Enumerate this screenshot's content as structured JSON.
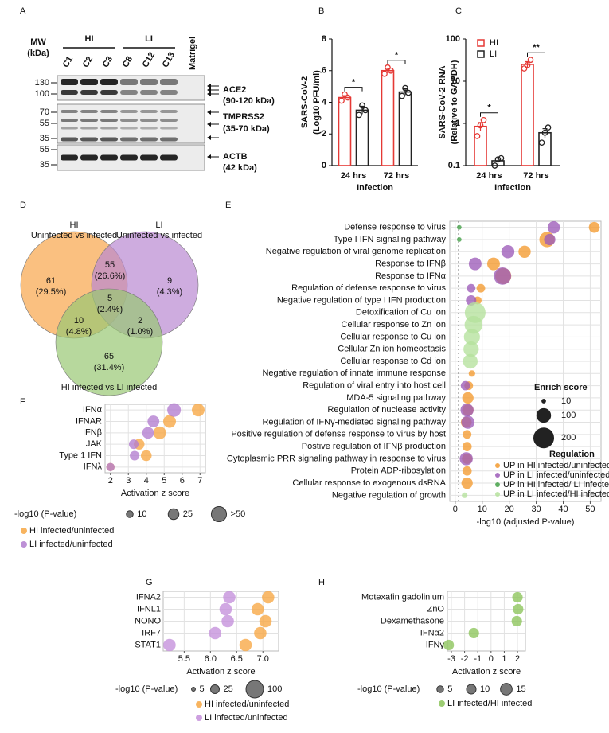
{
  "blot": {
    "panel": "A",
    "mw_title": [
      "MW",
      "(kDa)"
    ],
    "groups": [
      {
        "name": "HI",
        "lanes": [
          "C1",
          "C2",
          "C3"
        ]
      },
      {
        "name": "LI",
        "lanes": [
          "C8",
          "C12",
          "C13"
        ]
      }
    ],
    "control_lane": "Matrigel",
    "strips": [
      {
        "mw": [
          130,
          100
        ],
        "labels": [
          "ACE2",
          "(90-120 kDa)"
        ]
      },
      {
        "mw": [
          70,
          55,
          35
        ],
        "labels": [
          "TMPRSS2",
          "(35-70 kDa)"
        ]
      },
      {
        "mw": [
          55,
          35
        ],
        "labels": [
          "ACTB",
          "(42 kDa)"
        ]
      }
    ]
  },
  "venn": {
    "panel": "D",
    "sets": [
      {
        "name": "HI",
        "subtitle": "Uninfected vs infected",
        "color": "#f8a54a"
      },
      {
        "name": "LI",
        "subtitle": "Uninfected vs infected",
        "color": "#b989d2"
      },
      {
        "name": "HI infected vs LI infected",
        "color": "#99c873"
      }
    ],
    "regions": [
      {
        "count": 61,
        "percent": "(29.5%)"
      },
      {
        "count": 55,
        "percent": "(26.6%)"
      },
      {
        "count": 9,
        "percent": "(4.3%)"
      },
      {
        "count": 5,
        "percent": "(2.4%)"
      },
      {
        "count": 10,
        "percent": "(4.8%)"
      },
      {
        "count": 2,
        "percent": "(1.0%)"
      },
      {
        "count": 65,
        "percent": "(31.4%)"
      }
    ]
  },
  "chart_data": [
    {
      "panel": "B",
      "type": "bar",
      "y_label": [
        "SARS-CoV-2",
        "(Log10 PFU/ml)"
      ],
      "x_label": "Infection",
      "categories": [
        "24 hrs",
        "72 hrs"
      ],
      "ylim": [
        0,
        8
      ],
      "yticks": [
        0,
        2,
        4,
        6,
        8
      ],
      "series": [
        {
          "color": "#e53935",
          "values": [
            4.3,
            6.0
          ],
          "errors": [
            0.12,
            0.15
          ],
          "points": [
            [
              4.1,
              4.5,
              4.3
            ],
            [
              5.8,
              6.2,
              6.0
            ]
          ]
        },
        {
          "color": "#222222",
          "values": [
            3.5,
            4.65
          ],
          "errors": [
            0.25,
            0.2
          ],
          "points": [
            [
              3.2,
              3.8,
              3.5
            ],
            [
              4.4,
              4.9,
              4.6
            ]
          ]
        }
      ],
      "annotations": [
        "*",
        "*"
      ]
    },
    {
      "panel": "C",
      "type": "bar",
      "log_scale": true,
      "legend": "top-left",
      "y_label": [
        "SARS-CoV-2 RNA",
        "(Relative to GAPDH)"
      ],
      "x_label": "Infection",
      "categories": [
        "24 hrs",
        "72 hrs"
      ],
      "ylim": [
        0.1,
        100
      ],
      "yticks": [
        0.1,
        1,
        10,
        100
      ],
      "series": [
        {
          "name": "HI",
          "color": "#e53935",
          "values": [
            0.85,
            25
          ],
          "errors": [
            0.2,
            4
          ],
          "points": [
            [
              0.5,
              0.9,
              1.2
            ],
            [
              20,
              24,
              32
            ]
          ]
        },
        {
          "name": "LI",
          "color": "#222222",
          "values": [
            0.13,
            0.6
          ],
          "errors": [
            0.02,
            0.15
          ],
          "points": [
            [
              0.1,
              0.14,
              0.15
            ],
            [
              0.35,
              0.6,
              0.8
            ]
          ]
        }
      ],
      "annotations": [
        "*",
        "**"
      ]
    },
    {
      "panel": "E",
      "type": "dot",
      "x_label": "-log10 (adjusted P-value)",
      "grid": true,
      "vline": 1.3,
      "categories": [
        "Defense response to virus",
        "Type I IFN signaling pathway",
        "Negative regulation of viral genome replication",
        "Response to IFNβ",
        "Response to IFNα",
        "Regulation of defense response to virus",
        "Negative regulation of type I IFN production",
        "Detoxification of Cu ion",
        "Cellular response to Zn ion",
        "Cellular response to Cu ion",
        "Cellular Zn ion homeostasis",
        "Cellular response to Cd ion",
        "Negative regulation of innate immune response",
        "Regulation of viral entry into host cell",
        "MDA-5 signaling pathway",
        "Regulation of nuclease activity",
        "Regulation of IFNγ-mediated signaling pathway",
        "Positive regulation of defense response to virus by host",
        "Postive regulation of IFNβ production",
        "Cytoplasmic PRR signaling pathway in response to virus",
        "Protein ADP-ribosylation",
        "Cellular response to exogenous dsRNA",
        "Negative regulation of growth"
      ],
      "xlim": [
        -2,
        54
      ],
      "xticks": [
        0,
        10,
        20,
        30,
        40,
        50
      ],
      "size_title": "Enrich score",
      "size_legend": [
        10,
        100,
        200
      ],
      "legend_title": "Regulation",
      "series": [
        {
          "name": "UP in HI infected/uninfected",
          "color": "#f39a2e",
          "values": [
            51.5,
            34,
            25.7,
            14.2,
            17.8,
            9.5,
            8.3,
            null,
            null,
            null,
            null,
            null,
            6.2,
            5.0,
            4.7,
            4.7,
            4.1,
            4.4,
            4.4,
            4.4,
            4.4,
            4.4,
            null
          ],
          "sizes": [
            55,
            110,
            70,
            75,
            120,
            35,
            30,
            null,
            null,
            null,
            null,
            null,
            20,
            35,
            60,
            60,
            55,
            35,
            40,
            50,
            40,
            60,
            null
          ]
        },
        {
          "name": "UP in LI infected/uninfected",
          "color": "#9c5bb8",
          "values": [
            36.5,
            35,
            19.5,
            7.4,
            17.5,
            5.9,
            5.9,
            null,
            null,
            null,
            null,
            null,
            null,
            3.8,
            null,
            4.4,
            4.7,
            null,
            null,
            4.1,
            null,
            null,
            null
          ],
          "sizes": [
            70,
            60,
            80,
            75,
            140,
            35,
            50,
            null,
            null,
            null,
            null,
            null,
            null,
            40,
            null,
            80,
            80,
            null,
            null,
            80,
            null,
            null,
            null
          ]
        },
        {
          "name": "UP in HI infected/ LI infected",
          "color": "#43a047",
          "values": [
            1.5,
            1.5,
            null,
            null,
            null,
            null,
            null,
            null,
            null,
            null,
            null,
            null,
            null,
            null,
            null,
            null,
            null,
            null,
            null,
            null,
            null,
            null,
            null
          ],
          "sizes": [
            10,
            10,
            null,
            null,
            null,
            null,
            null,
            null,
            null,
            null,
            null,
            null,
            null,
            null,
            null,
            null,
            null,
            null,
            null,
            null,
            null,
            null,
            null
          ]
        },
        {
          "name": "UP in LI infected/HI infected",
          "color": "#b5e29c",
          "values": [
            null,
            null,
            null,
            null,
            null,
            null,
            null,
            7.4,
            6.8,
            6.2,
            5.9,
            5.6,
            null,
            null,
            null,
            null,
            null,
            null,
            null,
            null,
            null,
            null,
            3.5
          ],
          "sizes": [
            null,
            null,
            null,
            null,
            null,
            null,
            null,
            200,
            150,
            120,
            110,
            100,
            null,
            null,
            null,
            null,
            null,
            null,
            null,
            null,
            null,
            null,
            15
          ]
        }
      ]
    },
    {
      "panel": "F",
      "type": "dot",
      "x_label": "Activation z score",
      "grid": true,
      "categories": [
        "IFNα",
        "IFNAR",
        "IFNβ",
        "JAK",
        "Type 1 IFN",
        "IFNλ"
      ],
      "xlim": [
        1.7,
        7.3
      ],
      "xticks": [
        2,
        3,
        4,
        5,
        6,
        7
      ],
      "size_title": "-log10 (P-value)",
      "size_legend": [
        10,
        25,
        {
          "value": 50,
          "label": ">50"
        }
      ],
      "series": [
        {
          "name": "HI infected/uninfected",
          "color": "#f7a743",
          "values": [
            6.9,
            5.3,
            4.75,
            3.6,
            4.0,
            2.0
          ],
          "sizes": [
            35,
            35,
            35,
            25,
            25,
            15
          ]
        },
        {
          "name": "LI infected/uninfected",
          "color": "#b27ccf",
          "values": [
            5.55,
            4.4,
            4.1,
            3.3,
            3.35,
            2.0
          ],
          "sizes": [
            40,
            30,
            30,
            20,
            20,
            15
          ]
        }
      ]
    },
    {
      "panel": "G",
      "type": "dot",
      "x_label": "Activation z score",
      "grid": true,
      "categories": [
        "IFNA2",
        "IFNL1",
        "NONO",
        "IRF7",
        "STAT1"
      ],
      "xlim": [
        5.1,
        7.3
      ],
      "xticks": [
        5.5,
        {
          "value": 6,
          "label": "6.0"
        },
        6.5,
        {
          "value": 7,
          "label": "7.0"
        }
      ],
      "size_title": "-log10 (P-value)",
      "size_legend": [
        5,
        25,
        100
      ],
      "series": [
        {
          "name": "HI infected/uninfected",
          "color": "#f7a743",
          "values": [
            7.1,
            6.9,
            7.05,
            6.95,
            6.67
          ],
          "sizes": [
            50,
            50,
            50,
            50,
            50
          ]
        },
        {
          "name": "LI infected/uninfected",
          "color": "#c48fdb",
          "values": [
            6.36,
            6.29,
            6.33,
            6.09,
            5.22
          ],
          "sizes": [
            50,
            50,
            50,
            50,
            50
          ]
        }
      ]
    },
    {
      "panel": "H",
      "type": "dot",
      "x_label": "Activation z score",
      "grid": true,
      "categories": [
        "Motexafin gadolinium",
        "ZnO",
        "Dexamethasone",
        "IFNα2",
        "IFNγ"
      ],
      "xlim": [
        -3.3,
        2.6
      ],
      "xticks": [
        -3,
        -2,
        -1,
        0,
        1,
        2
      ],
      "size_title": "-log10 (P-value)",
      "size_legend": [
        5,
        10,
        15
      ],
      "series": [
        {
          "name": "LI infected/HI infected",
          "color": "#8cc45a",
          "values": [
            2.0,
            2.05,
            1.95,
            -1.3,
            -3.2
          ],
          "sizes": [
            12,
            12,
            12,
            12,
            12
          ]
        }
      ]
    }
  ]
}
